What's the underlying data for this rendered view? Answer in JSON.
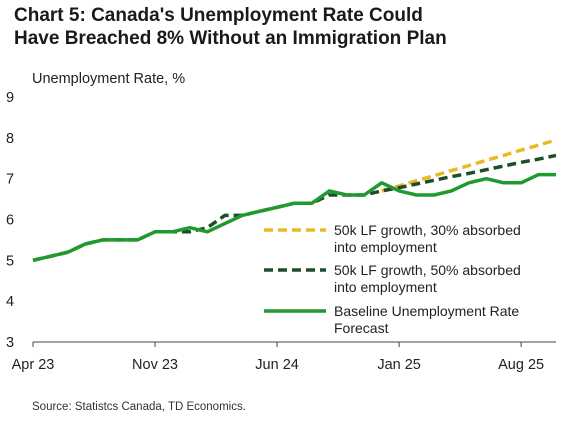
{
  "title_line1": "Chart 5: Canada's Unemployment Rate Could",
  "title_line2": "Have Breached 8% Without an Immigration Plan",
  "source": "Source: Statistcs Canada, TD Economics.",
  "chart_data": {
    "type": "line",
    "title": "Chart 5: Canada's Unemployment Rate Could Have Breached 8% Without an Immigration Plan",
    "ylabel": "Unemployment Rate, %",
    "xlabel": "",
    "ylim": [
      3,
      9
    ],
    "yticks": [
      3,
      4,
      5,
      6,
      7,
      8,
      9
    ],
    "x": [
      "2023-04",
      "2023-05",
      "2023-06",
      "2023-07",
      "2023-08",
      "2023-09",
      "2023-10",
      "2023-11",
      "2023-12",
      "2024-01",
      "2024-02",
      "2024-03",
      "2024-04",
      "2024-05",
      "2024-06",
      "2024-07",
      "2024-08",
      "2024-09",
      "2024-10",
      "2024-11",
      "2024-12",
      "2025-01",
      "2025-02",
      "2025-03",
      "2025-04",
      "2025-05",
      "2025-06",
      "2025-07",
      "2025-08",
      "2025-09",
      "2025-10"
    ],
    "xticks": [
      {
        "label": "Apr 23",
        "x": "2023-04"
      },
      {
        "label": "Nov 23",
        "x": "2023-11"
      },
      {
        "label": "Jun 24",
        "x": "2024-06"
      },
      {
        "label": "Jan 25",
        "x": "2025-01"
      },
      {
        "label": "Aug 25",
        "x": "2025-08"
      }
    ],
    "grid": false,
    "legend_position": "right",
    "series": [
      {
        "name": "50k LF growth, 30% absorbed into employment",
        "legend_lines": [
          "50k LF growth, 30% absorbed",
          "into employment"
        ],
        "color": "#e8b923",
        "style": "dashed",
        "x": [
          "2024-12",
          "2025-01",
          "2025-02",
          "2025-03",
          "2025-04",
          "2025-05",
          "2025-06",
          "2025-07",
          "2025-08",
          "2025-09",
          "2025-10"
        ],
        "values": [
          6.7,
          6.82,
          6.95,
          7.07,
          7.2,
          7.32,
          7.45,
          7.57,
          7.7,
          7.82,
          7.95
        ]
      },
      {
        "name": "50k LF growth, 50% absorbed into employment",
        "legend_lines": [
          "50k LF growth, 50% absorbed",
          "into employment"
        ],
        "color": "#1e4d2b",
        "style": "dashed",
        "x": [
          "2023-04",
          "2023-05",
          "2023-06",
          "2023-07",
          "2023-08",
          "2023-09",
          "2023-10",
          "2023-11",
          "2023-12",
          "2024-01",
          "2024-02",
          "2024-03",
          "2024-04",
          "2024-05",
          "2024-06",
          "2024-07",
          "2024-08",
          "2024-09",
          "2024-10",
          "2024-11",
          "2024-12",
          "2025-01",
          "2025-02",
          "2025-03",
          "2025-04",
          "2025-05",
          "2025-06",
          "2025-07",
          "2025-08",
          "2025-09",
          "2025-10"
        ],
        "values": [
          5.0,
          5.1,
          5.2,
          5.4,
          5.5,
          5.5,
          5.5,
          5.7,
          5.7,
          5.7,
          5.8,
          6.1,
          6.1,
          6.2,
          6.3,
          6.4,
          6.4,
          6.6,
          6.6,
          6.6,
          6.7,
          6.78,
          6.87,
          6.96,
          7.05,
          7.13,
          7.22,
          7.31,
          7.4,
          7.48,
          7.57
        ]
      },
      {
        "name": "Baseline Unemployment Rate Forecast",
        "legend_lines": [
          "Baseline Unemployment Rate",
          "Forecast"
        ],
        "color": "#1f9a2e",
        "style": "solid",
        "x": [
          "2023-04",
          "2023-05",
          "2023-06",
          "2023-07",
          "2023-08",
          "2023-09",
          "2023-10",
          "2023-11",
          "2023-12",
          "2024-01",
          "2024-02",
          "2024-03",
          "2024-04",
          "2024-05",
          "2024-06",
          "2024-07",
          "2024-08",
          "2024-09",
          "2024-10",
          "2024-11",
          "2024-12",
          "2025-01",
          "2025-02",
          "2025-03",
          "2025-04",
          "2025-05",
          "2025-06",
          "2025-07",
          "2025-08",
          "2025-09",
          "2025-10"
        ],
        "values": [
          5.0,
          5.1,
          5.2,
          5.4,
          5.5,
          5.5,
          5.5,
          5.7,
          5.7,
          5.8,
          5.7,
          5.9,
          6.1,
          6.2,
          6.3,
          6.4,
          6.4,
          6.7,
          6.6,
          6.6,
          6.9,
          6.7,
          6.6,
          6.6,
          6.7,
          6.9,
          7.0,
          6.9,
          6.9,
          7.1,
          7.1
        ]
      }
    ]
  }
}
